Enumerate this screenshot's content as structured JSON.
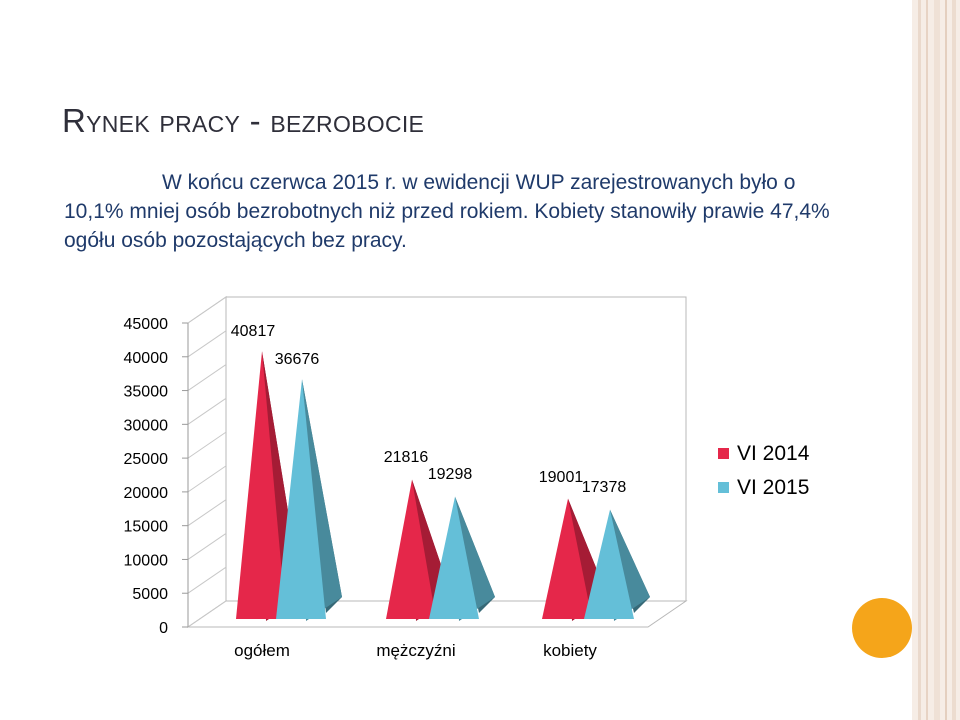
{
  "slide": {
    "title": "Rynek pracy - bezrobocie",
    "text": "W końcu czerwca 2015 r. w ewidencji WUP zarejestrowanych było o 10,1% mniej osób bezrobotnych niż przed rokiem. Kobiety stanowiły prawie 47,4% ogółu osób pozostających bez pracy."
  },
  "chart_data": {
    "type": "bar",
    "style": "3d-pyramid",
    "categories": [
      "ogółem",
      "mężczyźni",
      "kobiety"
    ],
    "series": [
      {
        "name": "VI 2014",
        "values": [
          40817,
          21816,
          19001
        ],
        "color": "#e5274a"
      },
      {
        "name": "VI 2015",
        "values": [
          36676,
          19298,
          17378
        ],
        "color": "#64bfd8"
      }
    ],
    "data_labels": [
      [
        "40817",
        "21816",
        "19001"
      ],
      [
        "36676",
        "19298",
        "17378"
      ]
    ],
    "ylim": [
      0,
      45000
    ],
    "yticks": [
      "0",
      "5000",
      "10000",
      "15000",
      "20000",
      "25000",
      "30000",
      "35000",
      "40000",
      "45000"
    ],
    "grid": false,
    "legend": "right"
  },
  "colors": {
    "accent": "#f5a51a",
    "text": "#1f3a6a"
  }
}
